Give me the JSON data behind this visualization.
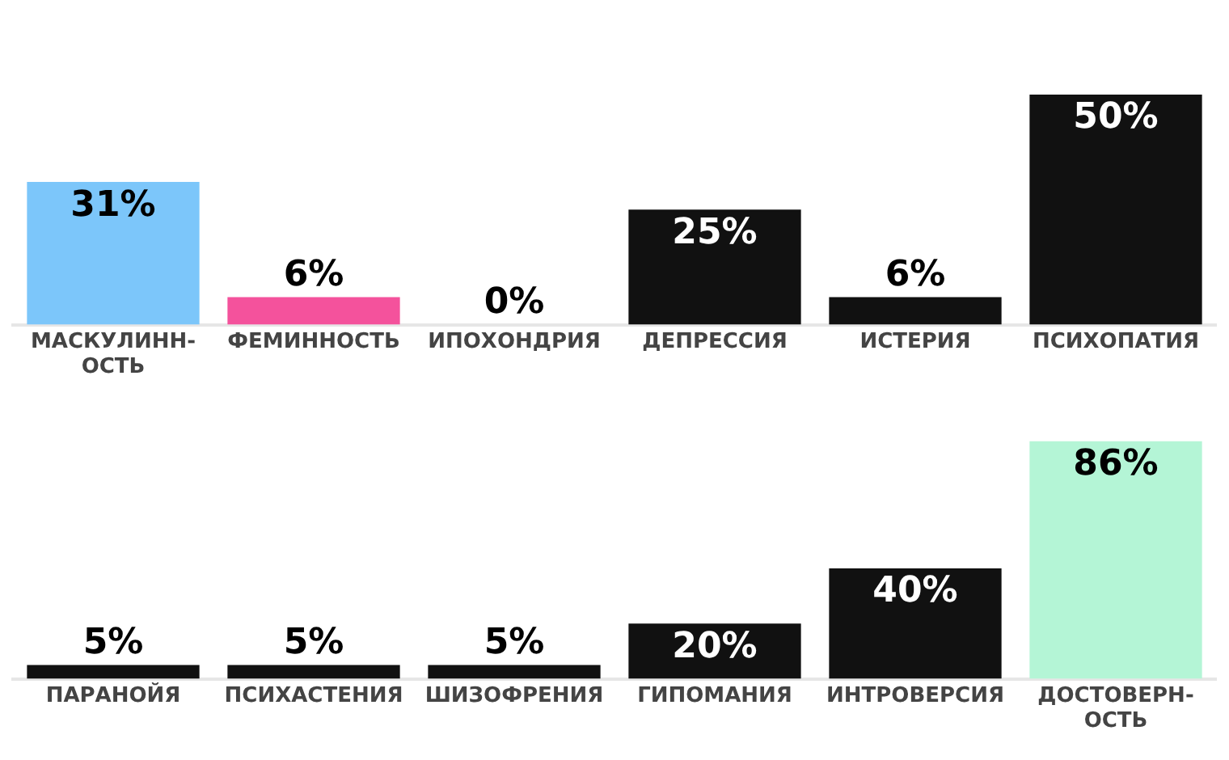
{
  "chart_data": [
    {
      "type": "bar",
      "categories": [
        "МАСКУЛИНН-ОСТЬ",
        "ФЕМИННОСТЬ",
        "ИПОХОНДРИЯ",
        "ДЕПРЕССИЯ",
        "ИСТЕРИЯ",
        "ПСИХОПАТИЯ"
      ],
      "values": [
        31,
        6,
        0,
        25,
        6,
        50
      ],
      "value_labels": [
        "31%",
        "6%",
        "0%",
        "25%",
        "6%",
        "50%"
      ],
      "colors": [
        "#7cc6fa",
        "#f4529c",
        "#111111",
        "#111111",
        "#111111",
        "#111111"
      ],
      "tick_labels": "x",
      "legend": false
    },
    {
      "type": "bar",
      "categories": [
        "ПАРАНОЙЯ",
        "ПСИХАСТЕНИЯ",
        "ШИЗОФРЕНИЯ",
        "ГИПОМАНИЯ",
        "ИНТРОВЕРСИЯ",
        "ДОСТОВЕРН-ОСТЬ"
      ],
      "values": [
        5,
        5,
        5,
        20,
        40,
        86
      ],
      "value_labels": [
        "5%",
        "5%",
        "5%",
        "20%",
        "40%",
        "86%"
      ],
      "colors": [
        "#111111",
        "#111111",
        "#111111",
        "#111111",
        "#111111",
        "#b4f5d6"
      ],
      "tick_labels": "x",
      "legend": false
    }
  ]
}
